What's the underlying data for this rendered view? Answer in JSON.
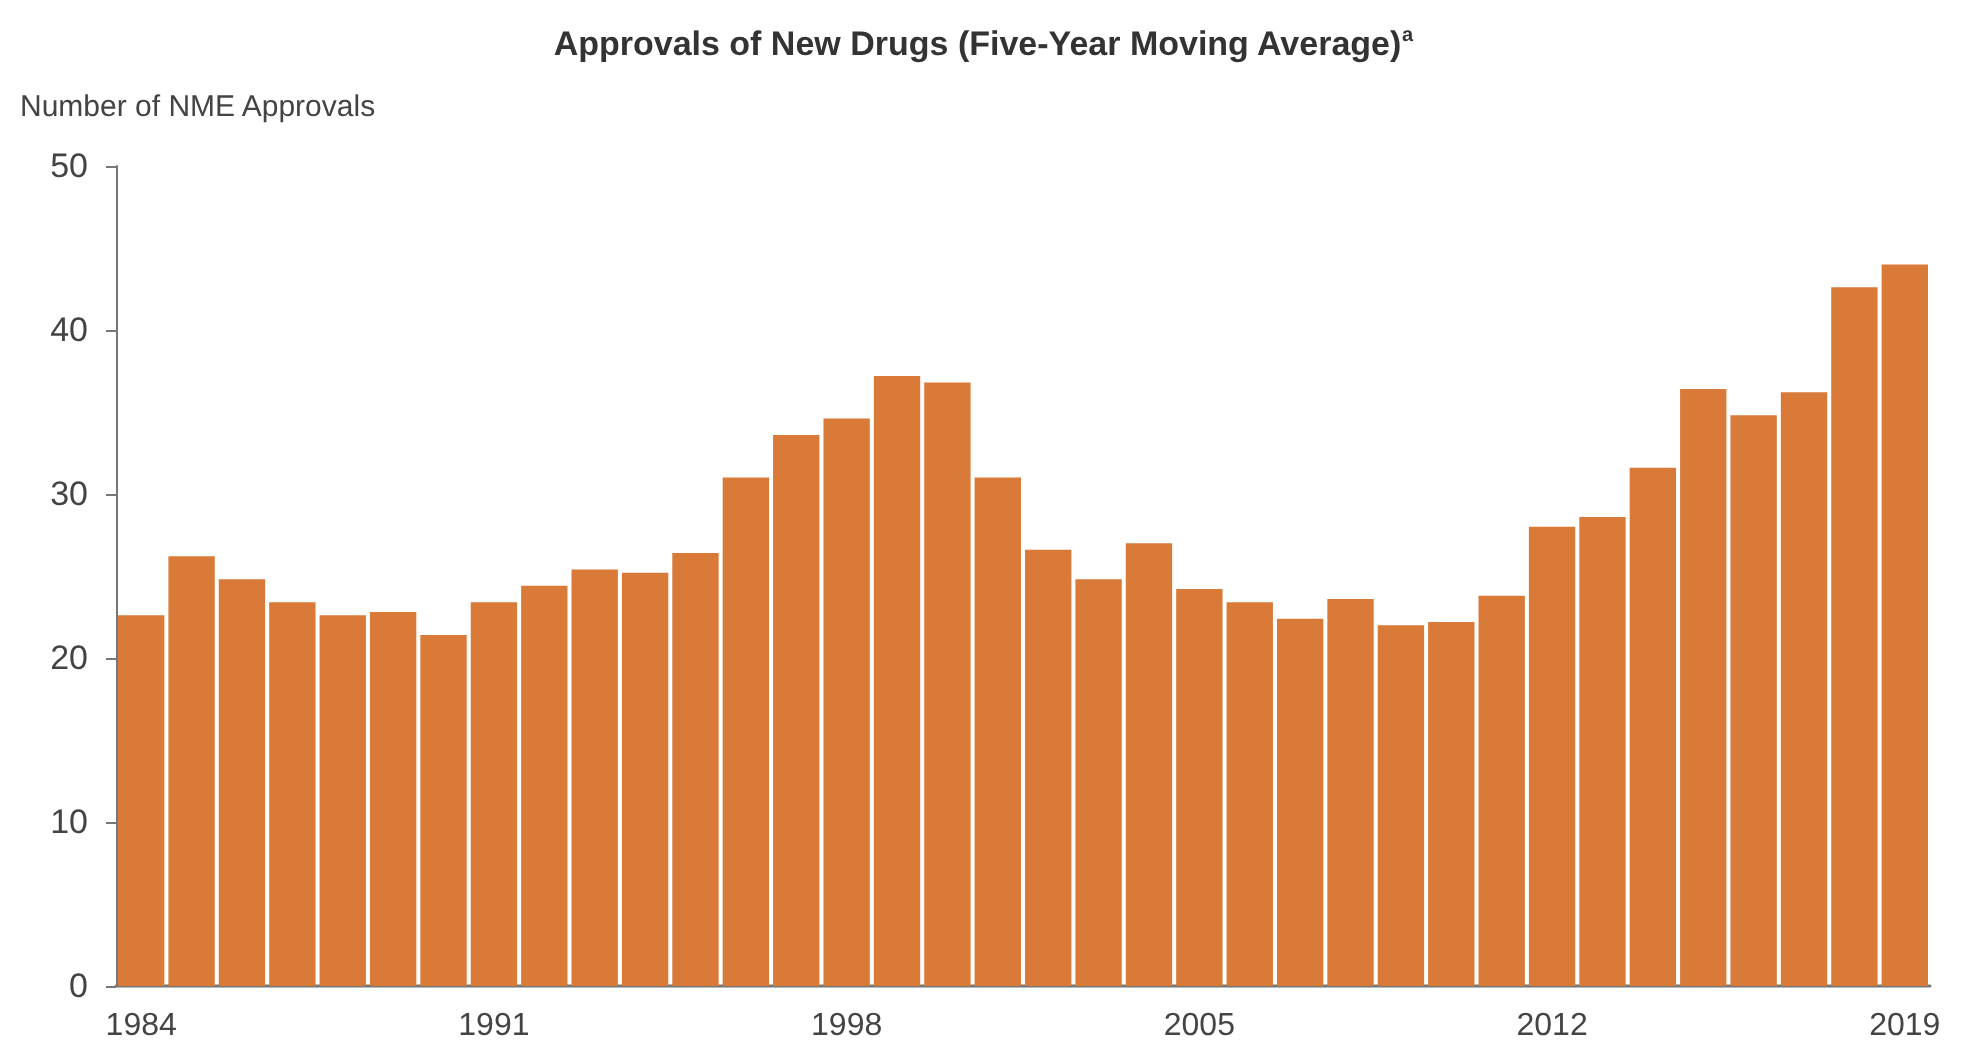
{
  "chart_data": {
    "type": "bar",
    "title": "Approvals of New Drugs (Five-Year Moving Average)$^{a}$",
    "ylabel": "Number of NME Approvals",
    "categories": [
      "1984",
      null,
      null,
      null,
      null,
      null,
      null,
      "1991",
      null,
      null,
      null,
      null,
      null,
      null,
      "1998",
      null,
      null,
      null,
      null,
      null,
      null,
      "2005",
      null,
      null,
      null,
      null,
      null,
      null,
      "2012",
      null,
      null,
      null,
      null,
      null,
      null,
      "2019"
    ],
    "values": [
      22.6,
      26.2,
      24.8,
      23.4,
      22.6,
      22.8,
      21.4,
      23.4,
      24.4,
      25.4,
      25.2,
      26.4,
      31.0,
      33.6,
      34.6,
      37.2,
      36.8,
      31.0,
      26.6,
      24.8,
      27.0,
      24.2,
      23.4,
      22.4,
      23.6,
      22.0,
      22.2,
      23.8,
      28.0,
      28.6,
      31.6,
      36.4,
      34.8,
      36.2,
      42.6,
      44.0
    ],
    "color": "#d97a38",
    "ylim": [
      0,
      50
    ],
    "yticks": [
      0,
      10,
      20,
      30,
      40,
      50
    ],
    "grid": false
  }
}
